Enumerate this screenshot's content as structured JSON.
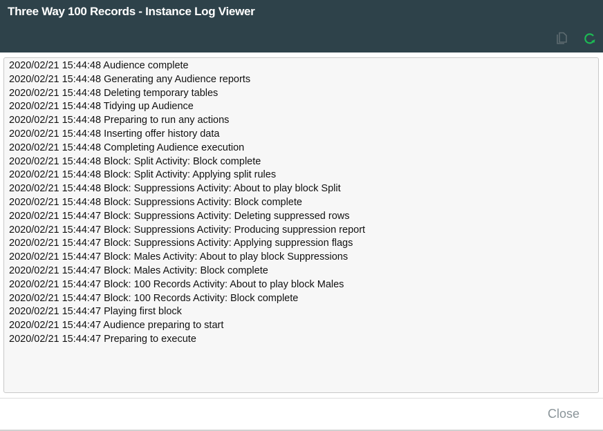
{
  "window": {
    "title": "Three Way 100 Records - Instance Log Viewer"
  },
  "toolbar": {
    "copy_icon": "copy-icon",
    "refresh_icon": "refresh-icon",
    "refresh_color": "#1db954"
  },
  "log": [
    "2020/02/21 15:44:48 Audience complete",
    "2020/02/21 15:44:48 Generating any Audience reports",
    "2020/02/21 15:44:48 Deleting temporary tables",
    "2020/02/21 15:44:48 Tidying up Audience",
    "2020/02/21 15:44:48 Preparing to run any actions",
    "2020/02/21 15:44:48 Inserting offer history data",
    "2020/02/21 15:44:48 Completing Audience execution",
    "2020/02/21 15:44:48 Block: Split Activity: Block complete",
    "2020/02/21 15:44:48 Block: Split Activity: Applying split rules",
    "2020/02/21 15:44:48 Block: Suppressions Activity: About to play block Split",
    "2020/02/21 15:44:48 Block: Suppressions Activity: Block complete",
    "2020/02/21 15:44:47 Block: Suppressions Activity: Deleting suppressed rows",
    "2020/02/21 15:44:47 Block: Suppressions Activity: Producing suppression report",
    "2020/02/21 15:44:47 Block: Suppressions Activity: Applying suppression flags",
    "2020/02/21 15:44:47 Block: Males Activity: About to play block Suppressions",
    "2020/02/21 15:44:47 Block: Males Activity: Block complete",
    "2020/02/21 15:44:47 Block: 100 Records Activity: About to play block Males",
    "2020/02/21 15:44:47 Block: 100 Records Activity: Block complete",
    "2020/02/21 15:44:47 Playing first block",
    "2020/02/21 15:44:47 Audience preparing to start",
    "2020/02/21 15:44:47 Preparing to execute"
  ],
  "footer": {
    "close_label": "Close"
  }
}
